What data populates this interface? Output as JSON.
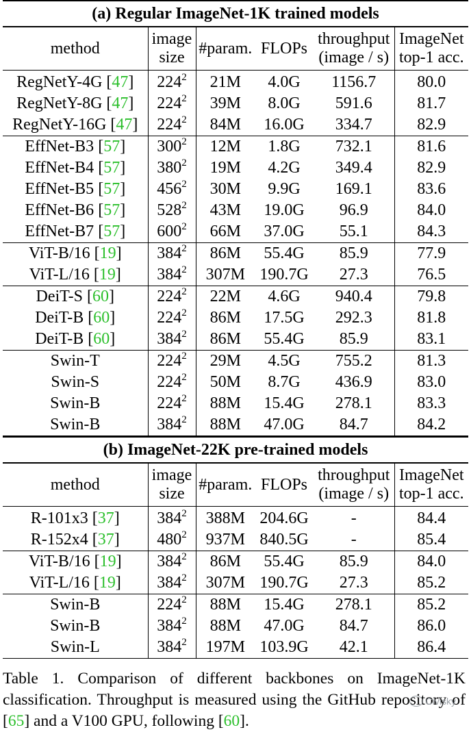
{
  "sections": [
    {
      "title": "(a) Regular ImageNet-1K trained models",
      "headers": {
        "method": "method",
        "size": [
          "image",
          "size"
        ],
        "params": "#param.",
        "flops": "FLOPs",
        "throughput": [
          "throughput",
          "(image / s)"
        ],
        "acc": [
          "ImageNet",
          "top-1 acc."
        ]
      },
      "groups": [
        [
          {
            "name": "RegNetY-4G",
            "ref": "47",
            "size": "224",
            "params": "21M",
            "flops": "4.0G",
            "throughput": "1156.7",
            "acc": "80.0"
          },
          {
            "name": "RegNetY-8G",
            "ref": "47",
            "size": "224",
            "params": "39M",
            "flops": "8.0G",
            "throughput": "591.6",
            "acc": "81.7"
          },
          {
            "name": "RegNetY-16G",
            "ref": "47",
            "size": "224",
            "params": "84M",
            "flops": "16.0G",
            "throughput": "334.7",
            "acc": "82.9"
          }
        ],
        [
          {
            "name": "EffNet-B3",
            "ref": "57",
            "size": "300",
            "params": "12M",
            "flops": "1.8G",
            "throughput": "732.1",
            "acc": "81.6"
          },
          {
            "name": "EffNet-B4",
            "ref": "57",
            "size": "380",
            "params": "19M",
            "flops": "4.2G",
            "throughput": "349.4",
            "acc": "82.9"
          },
          {
            "name": "EffNet-B5",
            "ref": "57",
            "size": "456",
            "params": "30M",
            "flops": "9.9G",
            "throughput": "169.1",
            "acc": "83.6"
          },
          {
            "name": "EffNet-B6",
            "ref": "57",
            "size": "528",
            "params": "43M",
            "flops": "19.0G",
            "throughput": "96.9",
            "acc": "84.0"
          },
          {
            "name": "EffNet-B7",
            "ref": "57",
            "size": "600",
            "params": "66M",
            "flops": "37.0G",
            "throughput": "55.1",
            "acc": "84.3"
          }
        ],
        [
          {
            "name": "ViT-B/16",
            "ref": "19",
            "size": "384",
            "params": "86M",
            "flops": "55.4G",
            "throughput": "85.9",
            "acc": "77.9"
          },
          {
            "name": "ViT-L/16",
            "ref": "19",
            "size": "384",
            "params": "307M",
            "flops": "190.7G",
            "throughput": "27.3",
            "acc": "76.5"
          }
        ],
        [
          {
            "name": "DeiT-S",
            "ref": "60",
            "size": "224",
            "params": "22M",
            "flops": "4.6G",
            "throughput": "940.4",
            "acc": "79.8"
          },
          {
            "name": "DeiT-B",
            "ref": "60",
            "size": "224",
            "params": "86M",
            "flops": "17.5G",
            "throughput": "292.3",
            "acc": "81.8"
          },
          {
            "name": "DeiT-B",
            "ref": "60",
            "size": "384",
            "params": "86M",
            "flops": "55.4G",
            "throughput": "85.9",
            "acc": "83.1"
          }
        ],
        [
          {
            "name": "Swin-T",
            "ref": "",
            "size": "224",
            "params": "29M",
            "flops": "4.5G",
            "throughput": "755.2",
            "acc": "81.3"
          },
          {
            "name": "Swin-S",
            "ref": "",
            "size": "224",
            "params": "50M",
            "flops": "8.7G",
            "throughput": "436.9",
            "acc": "83.0"
          },
          {
            "name": "Swin-B",
            "ref": "",
            "size": "224",
            "params": "88M",
            "flops": "15.4G",
            "throughput": "278.1",
            "acc": "83.3"
          },
          {
            "name": "Swin-B",
            "ref": "",
            "size": "384",
            "params": "88M",
            "flops": "47.0G",
            "throughput": "84.7",
            "acc": "84.2"
          }
        ]
      ]
    },
    {
      "title": "(b) ImageNet-22K pre-trained models",
      "headers": {
        "method": "method",
        "size": [
          "image",
          "size"
        ],
        "params": "#param.",
        "flops": "FLOPs",
        "throughput": [
          "throughput",
          "(image / s)"
        ],
        "acc": [
          "ImageNet",
          "top-1 acc."
        ]
      },
      "groups": [
        [
          {
            "name": "R-101x3",
            "ref": "37",
            "size": "384",
            "params": "388M",
            "flops": "204.6G",
            "throughput": "-",
            "acc": "84.4"
          },
          {
            "name": "R-152x4",
            "ref": "37",
            "size": "480",
            "params": "937M",
            "flops": "840.5G",
            "throughput": "-",
            "acc": "85.4"
          }
        ],
        [
          {
            "name": "ViT-B/16",
            "ref": "19",
            "size": "384",
            "params": "86M",
            "flops": "55.4G",
            "throughput": "85.9",
            "acc": "84.0"
          },
          {
            "name": "ViT-L/16",
            "ref": "19",
            "size": "384",
            "params": "307M",
            "flops": "190.7G",
            "throughput": "27.3",
            "acc": "85.2"
          }
        ],
        [
          {
            "name": "Swin-B",
            "ref": "",
            "size": "224",
            "params": "88M",
            "flops": "15.4G",
            "throughput": "278.1",
            "acc": "85.2"
          },
          {
            "name": "Swin-B",
            "ref": "",
            "size": "384",
            "params": "88M",
            "flops": "47.0G",
            "throughput": "84.7",
            "acc": "86.0"
          },
          {
            "name": "Swin-L",
            "ref": "",
            "size": "384",
            "params": "197M",
            "flops": "103.9G",
            "throughput": "42.1",
            "acc": "86.4"
          }
        ]
      ]
    }
  ],
  "size_exponent": "2",
  "caption": {
    "part1": "Table 1. Comparison of different backbones on ImageNet-1K classification. Throughput is measured using the GitHub repository of [",
    "ref1": "65",
    "part2": "] and a V100 GPU, following [",
    "ref2": "60",
    "part3": "]."
  },
  "watermark": "Civisky",
  "colors": {
    "ref_link": "#2bbf2b",
    "watermark": "#9aa0a6"
  }
}
